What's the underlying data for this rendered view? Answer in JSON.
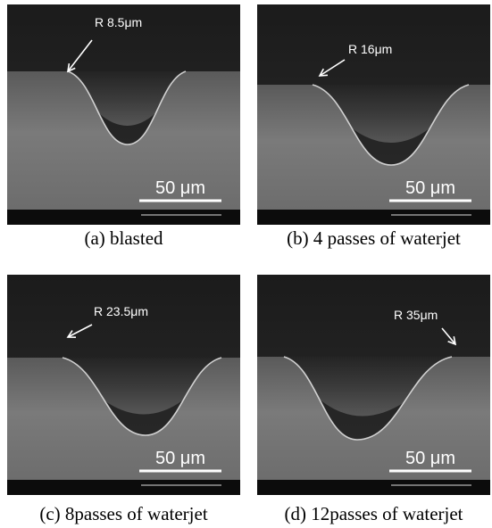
{
  "panels": [
    {
      "radius_label": "R 8.5μm",
      "scale_label": "50 μm",
      "caption": "(a) blasted"
    },
    {
      "radius_label": "R 16μm",
      "scale_label": "50 μm",
      "caption": "(b) 4 passes of waterjet"
    },
    {
      "radius_label": "R 23.5μm",
      "scale_label": "50 μm",
      "caption": "(c) 8passes of waterjet"
    },
    {
      "radius_label": "R 35μm",
      "scale_label": "50 μm",
      "caption": "(d) 12passes of waterjet"
    }
  ]
}
